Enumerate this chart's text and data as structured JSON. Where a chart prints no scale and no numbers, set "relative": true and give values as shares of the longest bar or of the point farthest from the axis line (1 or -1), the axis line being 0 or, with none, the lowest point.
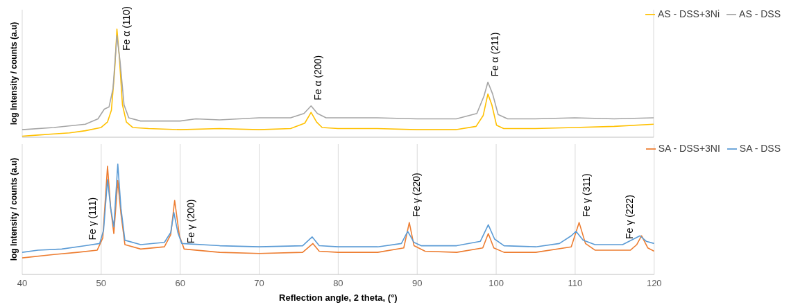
{
  "chart_data": [
    {
      "type": "line",
      "relative": true,
      "ylabel": "log Intensity / counts (a.u)",
      "xlim": [
        40,
        120
      ],
      "xticks": [
        40,
        50,
        60,
        70,
        80,
        90,
        100,
        110,
        120
      ],
      "tick_labels": false,
      "grid": "x",
      "legend": "top right",
      "marker": "none",
      "line_style": "solid",
      "series": [
        {
          "name": "AS - DSS+3Ni",
          "color": "#ffc000",
          "x": [
            40,
            42,
            44,
            46,
            48,
            50,
            50.8,
            51.3,
            51.7,
            52,
            52.3,
            52.7,
            53.2,
            54,
            56,
            60,
            65,
            70,
            74,
            75.8,
            76.6,
            77.3,
            78,
            80,
            85,
            90,
            95,
            97.5,
            98.4,
            99,
            99.5,
            100.1,
            101,
            105,
            110,
            115,
            120
          ],
          "values": [
            0.01,
            0.02,
            0.03,
            0.04,
            0.06,
            0.09,
            0.14,
            0.25,
            0.6,
            1,
            0.75,
            0.3,
            0.14,
            0.09,
            0.08,
            0.07,
            0.08,
            0.07,
            0.08,
            0.13,
            0.23,
            0.14,
            0.09,
            0.08,
            0.08,
            0.07,
            0.07,
            0.1,
            0.2,
            0.4,
            0.3,
            0.11,
            0.08,
            0.08,
            0.09,
            0.1,
            0.12
          ]
        },
        {
          "name": "AS - DSS",
          "color": "#a5a5a5",
          "x": [
            40,
            44,
            48,
            49.6,
            50.4,
            51,
            51.5,
            52,
            52.4,
            52.9,
            53.5,
            55,
            60,
            62,
            65,
            70,
            74,
            75.7,
            76.6,
            77.4,
            78.5,
            85,
            90,
            95,
            97.6,
            98.5,
            99,
            99.6,
            100.3,
            101.5,
            105,
            110,
            115,
            120
          ],
          "values": [
            0.07,
            0.09,
            0.12,
            0.17,
            0.26,
            0.28,
            0.45,
            0.94,
            0.7,
            0.3,
            0.18,
            0.15,
            0.15,
            0.17,
            0.16,
            0.18,
            0.18,
            0.22,
            0.29,
            0.22,
            0.18,
            0.18,
            0.17,
            0.17,
            0.22,
            0.38,
            0.51,
            0.4,
            0.21,
            0.17,
            0.17,
            0.18,
            0.17,
            0.18
          ]
        }
      ],
      "annotations": [
        {
          "text": "Fe α (110)",
          "x": 52.3,
          "y": 0.75
        },
        {
          "text": "Fe α (200)",
          "x": 76.6,
          "y": 0.29
        },
        {
          "text": "Fe α (211)",
          "x": 99,
          "y": 0.51
        }
      ]
    },
    {
      "type": "line",
      "relative": true,
      "ylabel": "log Intensity / counts (a.u)",
      "xlabel": "Reflection angle, 2 theta, (°)",
      "xlim": [
        40,
        120
      ],
      "xticks": [
        40,
        50,
        60,
        70,
        80,
        90,
        100,
        110,
        120
      ],
      "grid": "x",
      "legend": "top right",
      "marker": "none",
      "line_style": "solid",
      "series": [
        {
          "name": "SA - DSS+3NI",
          "color": "#ed7d31",
          "x": [
            40,
            44,
            47,
            49.5,
            50.2,
            50.8,
            51.2,
            51.6,
            52.1,
            52.5,
            53,
            55,
            58,
            58.8,
            59.3,
            59.9,
            60.5,
            65,
            70,
            75.5,
            76.8,
            77.6,
            80,
            85,
            88.3,
            89,
            89.6,
            91,
            95,
            98.3,
            99,
            99.7,
            101,
            105,
            109.5,
            110.5,
            111.3,
            112.5,
            117,
            117.8,
            118.4,
            119.2,
            120
          ],
          "values": [
            0.15,
            0.18,
            0.2,
            0.22,
            0.33,
            0.98,
            0.6,
            0.37,
            0.85,
            0.55,
            0.27,
            0.23,
            0.25,
            0.36,
            0.67,
            0.35,
            0.23,
            0.2,
            0.19,
            0.2,
            0.28,
            0.21,
            0.2,
            0.2,
            0.24,
            0.47,
            0.26,
            0.21,
            0.2,
            0.24,
            0.37,
            0.24,
            0.2,
            0.2,
            0.25,
            0.47,
            0.28,
            0.22,
            0.22,
            0.27,
            0.35,
            0.24,
            0.21
          ]
        },
        {
          "name": "SA - DSS",
          "color": "#5b9bd5",
          "x": [
            40,
            42,
            45,
            48,
            49.8,
            50.3,
            50.8,
            51.2,
            51.6,
            52.1,
            52.5,
            53,
            55,
            58,
            58.8,
            59.2,
            59.7,
            60.2,
            65,
            70,
            75.5,
            76.7,
            77.6,
            80,
            85,
            88,
            88.8,
            89.6,
            90.5,
            95,
            98,
            99,
            99.8,
            101,
            105,
            108,
            109.5,
            110.1,
            111,
            112.5,
            116,
            118.2,
            119,
            120
          ],
          "values": [
            0.2,
            0.22,
            0.23,
            0.26,
            0.28,
            0.4,
            0.86,
            0.6,
            0.43,
            1,
            0.6,
            0.31,
            0.27,
            0.29,
            0.38,
            0.56,
            0.38,
            0.28,
            0.26,
            0.25,
            0.26,
            0.34,
            0.26,
            0.25,
            0.25,
            0.28,
            0.39,
            0.29,
            0.26,
            0.26,
            0.3,
            0.45,
            0.32,
            0.26,
            0.25,
            0.28,
            0.35,
            0.39,
            0.31,
            0.27,
            0.27,
            0.35,
            0.3,
            0.28
          ]
        }
      ],
      "annotations": [
        {
          "text": "Fe γ (111)",
          "x": 48,
          "y": 0.26
        },
        {
          "text": "Fe γ (200)",
          "x": 60.5,
          "y": 0.23
        },
        {
          "text": "Fe γ (220)",
          "x": 89,
          "y": 0.47
        },
        {
          "text": "Fe γ (311)",
          "x": 110.5,
          "y": 0.47
        },
        {
          "text": "Fe γ (222)",
          "x": 116,
          "y": 0.27
        }
      ]
    }
  ]
}
